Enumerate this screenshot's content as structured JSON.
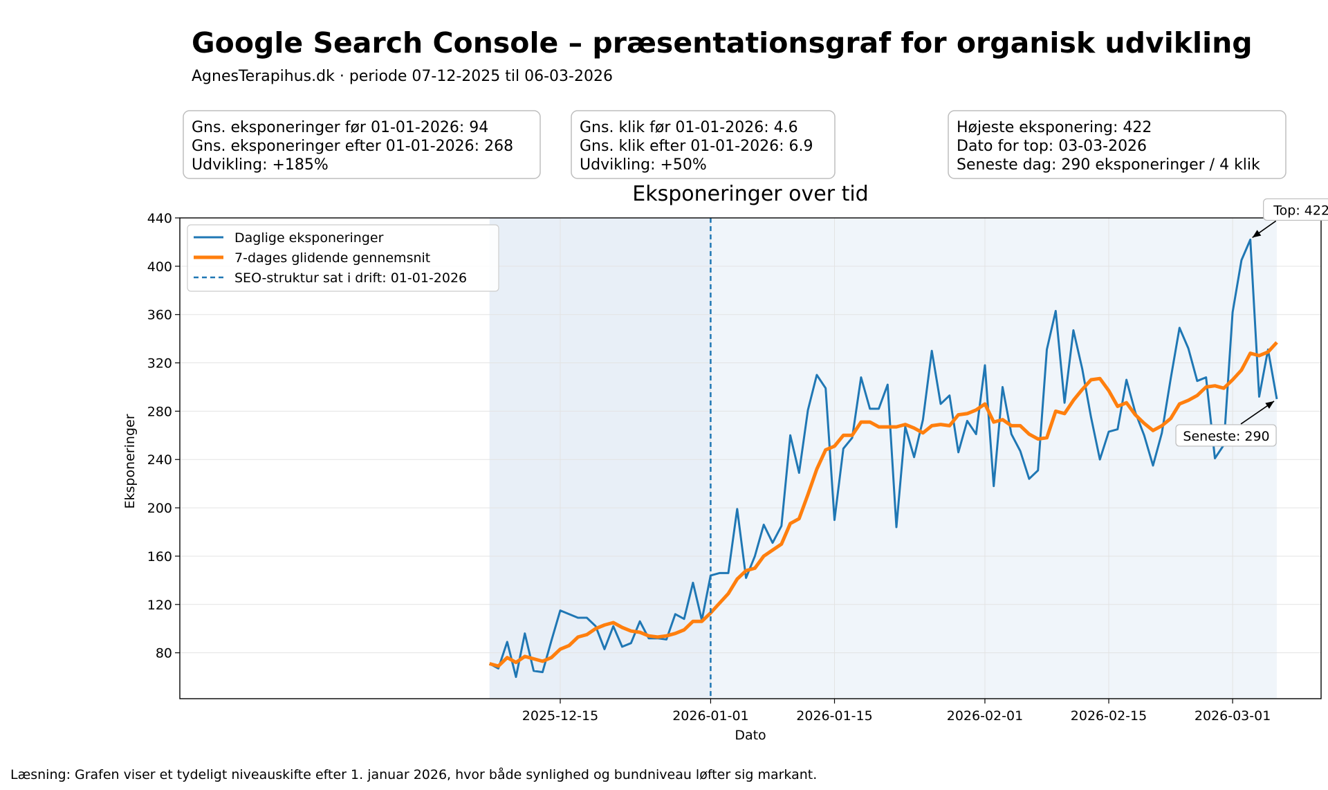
{
  "header": {
    "title": "Google Search Console – præsentationsgraf for organisk udvikling",
    "subtitle": "AgnesTerapihus.dk · periode 07-12-2025 til 06-03-2026"
  },
  "stat_boxes": [
    {
      "lines": [
        "Gns. eksponeringer før 01-01-2026: 94",
        "Gns. eksponeringer efter 01-01-2026: 268",
        "Udvikling: +185%"
      ]
    },
    {
      "lines": [
        "Gns. klik før 01-01-2026: 4.6",
        "Gns. klik efter 01-01-2026: 6.9",
        "Udvikling: +50%"
      ]
    },
    {
      "lines": [
        "Højeste eksponering: 422",
        "Dato for top: 03-03-2026",
        "Seneste dag: 290 eksponeringer / 4 klik"
      ]
    }
  ],
  "footer": {
    "note": "Læsning: Grafen viser et tydeligt niveauskifte efter 1. januar 2026, hvor både synlighed og bundniveau løfter sig markant."
  },
  "colors": {
    "daily": "#1f77b4",
    "avg": "#ff7f0e",
    "marker": "#1f77b4",
    "shade_before": "#e8eff7",
    "shade_after": "#f0f5fa",
    "grid": "#e3e3e3"
  },
  "chart_data": {
    "type": "line",
    "title": "Eksponeringer over tid",
    "xlabel": "Dato",
    "ylabel": "Eksponeringer",
    "x_start": "2025-12-07",
    "x_end": "2026-03-06",
    "xlim": [
      "2025-11-02",
      "2026-03-11"
    ],
    "ylim": [
      42,
      440
    ],
    "yticks": [
      80,
      120,
      160,
      200,
      240,
      280,
      320,
      360,
      400,
      440
    ],
    "xticks": [
      {
        "date": "2025-12-15",
        "label": "2025-12-15"
      },
      {
        "date": "2026-01-01",
        "label": "2026-01-01"
      },
      {
        "date": "2026-01-15",
        "label": "2026-01-15"
      },
      {
        "date": "2026-02-01",
        "label": "2026-02-01"
      },
      {
        "date": "2026-02-15",
        "label": "2026-02-15"
      },
      {
        "date": "2026-03-01",
        "label": "2026-03-01"
      }
    ],
    "grid": true,
    "legend_position": "top-left",
    "series": [
      {
        "name": "Daglige eksponeringer",
        "values": [
          71,
          67,
          89,
          60,
          96,
          65,
          64,
          90,
          115,
          112,
          109,
          109,
          102,
          83,
          102,
          85,
          88,
          106,
          92,
          92,
          91,
          112,
          108,
          138,
          107,
          144,
          146,
          146,
          199,
          142,
          160,
          186,
          171,
          185,
          260,
          229,
          281,
          310,
          299,
          190,
          249,
          258,
          308,
          282,
          282,
          302,
          184,
          267,
          242,
          273,
          330,
          286,
          293,
          246,
          272,
          261,
          318,
          218,
          300,
          261,
          247,
          224,
          231,
          331,
          363,
          287,
          347,
          315,
          275,
          240,
          263,
          265,
          306,
          279,
          260,
          235,
          262,
          307,
          349,
          332,
          305,
          308,
          241,
          252,
          362,
          405,
          422,
          292,
          331,
          290
        ]
      },
      {
        "name": "7-dages glidende gennemsnit",
        "values": [
          71,
          69,
          76,
          72,
          77,
          75,
          73,
          76,
          83,
          86,
          93,
          95,
          100,
          103,
          105,
          101,
          98,
          97,
          94,
          93,
          94,
          96,
          99,
          106,
          106,
          113,
          121,
          129,
          141,
          148,
          150,
          160,
          165,
          170,
          187,
          191,
          211,
          232,
          248,
          251,
          260,
          260,
          271,
          271,
          267,
          267,
          267,
          269,
          266,
          262,
          268,
          269,
          268,
          277,
          278,
          281,
          286,
          271,
          273,
          268,
          268,
          261,
          257,
          258,
          280,
          278,
          289,
          298,
          306,
          307,
          297,
          284,
          287,
          277,
          270,
          264,
          268,
          274,
          286,
          289,
          293,
          300,
          301,
          299,
          306,
          314,
          328,
          326,
          329,
          337
        ]
      }
    ],
    "vline": {
      "date": "2026-01-01",
      "label": "SEO-struktur sat i drift: 01-01-2026"
    },
    "annotations": [
      {
        "text": "Top: 422",
        "date": "2026-03-03",
        "value": 422
      },
      {
        "text": "Seneste: 290",
        "date": "2026-03-06",
        "value": 290
      }
    ]
  }
}
